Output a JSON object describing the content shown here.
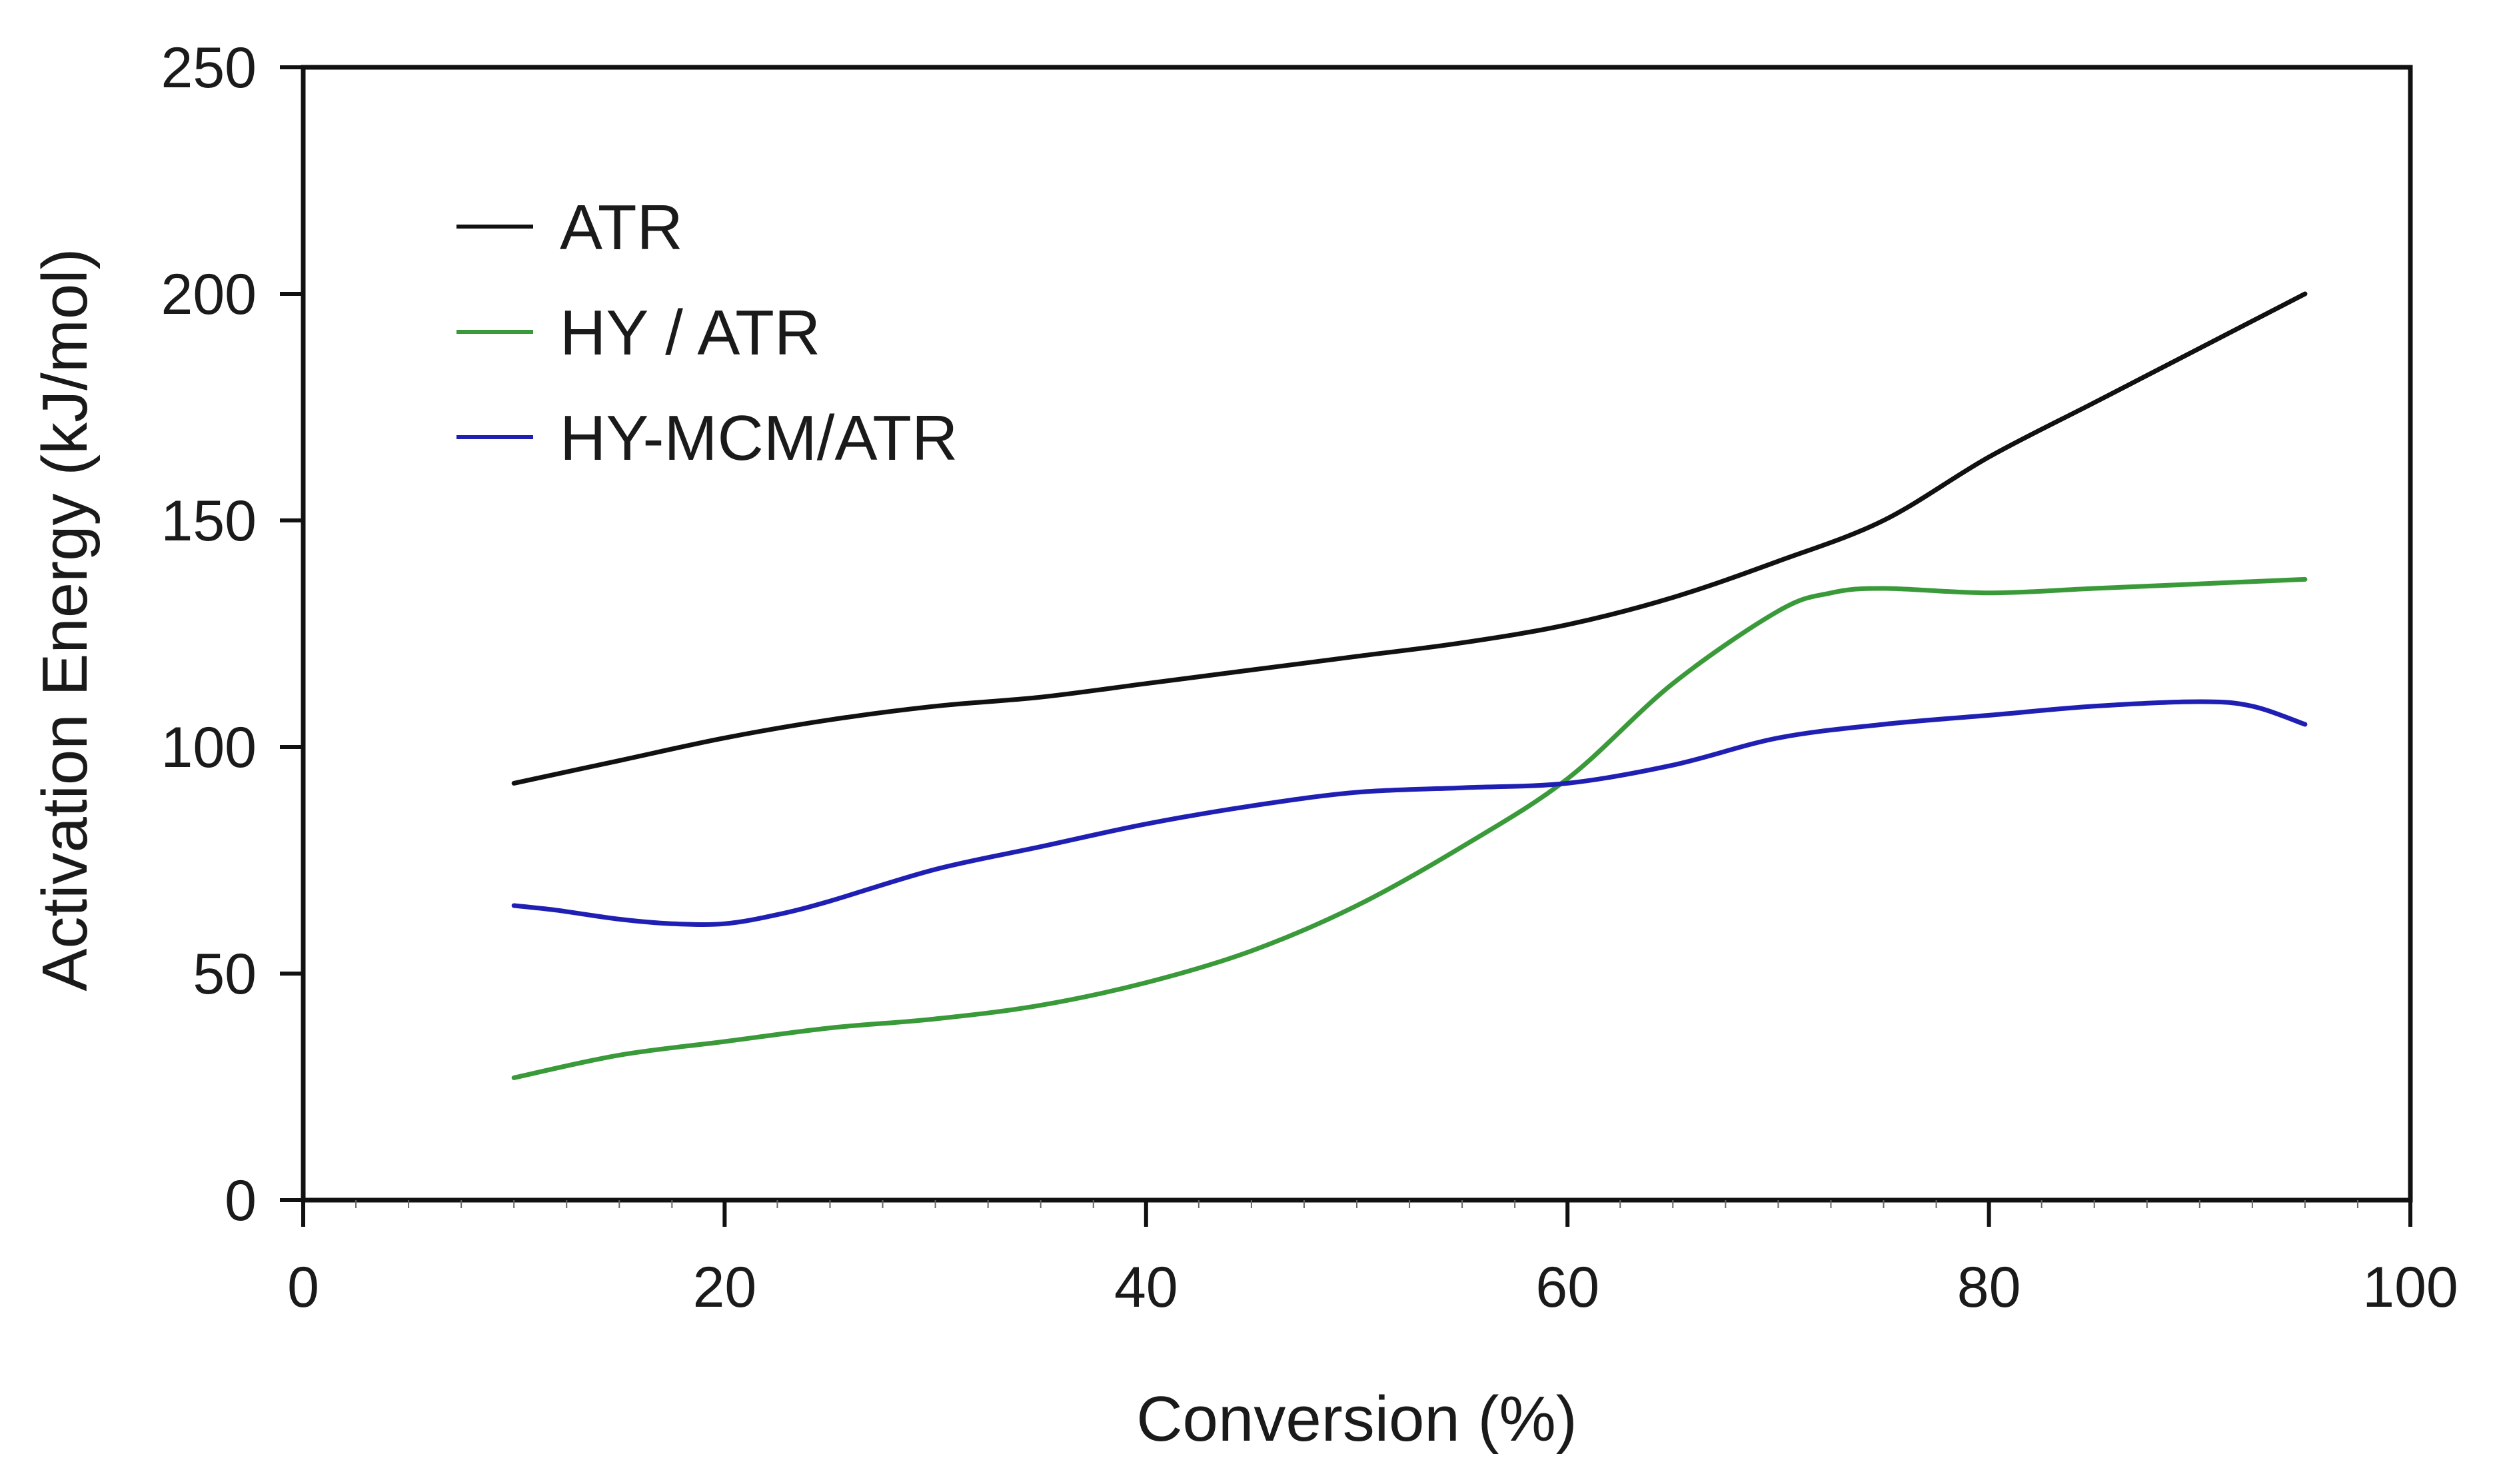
{
  "chart_data": {
    "type": "line",
    "title": "",
    "xlabel": "Conversion (%)",
    "ylabel": "Activation Energy (kJ/mol)",
    "xlim": [
      0,
      100
    ],
    "ylim": [
      0,
      250
    ],
    "xticks": [
      0,
      20,
      40,
      60,
      80,
      100
    ],
    "yticks": [
      0,
      50,
      100,
      150,
      200,
      250
    ],
    "xtick_labels": [
      "0",
      "20",
      "40",
      "60",
      "80",
      "100"
    ],
    "ytick_labels": [
      "0",
      "50",
      "100",
      "150",
      "200",
      "250"
    ],
    "grid": false,
    "legend_position": "top-left",
    "series": [
      {
        "name": "ATR",
        "color": "#111111",
        "x": [
          10,
          15,
          20,
          25,
          30,
          35,
          40,
          45,
          50,
          55,
          60,
          65,
          70,
          75,
          80,
          85,
          90,
          95
        ],
        "y": [
          92,
          97,
          102,
          106,
          109,
          111,
          114,
          117,
          120,
          123,
          127,
          133,
          141,
          150,
          164,
          176,
          188,
          200
        ]
      },
      {
        "name": "HY / ATR",
        "color": "#3a9a3a",
        "x": [
          10,
          15,
          20,
          25,
          30,
          35,
          40,
          45,
          50,
          55,
          60,
          65,
          70,
          72.5,
          75,
          80,
          85,
          90,
          95
        ],
        "y": [
          27,
          32,
          35,
          38,
          40,
          43,
          48,
          55,
          65,
          78,
          93,
          114,
          130,
          134,
          135,
          134,
          135,
          136,
          137
        ]
      },
      {
        "name": "HY-MCM/ATR",
        "color": "#1f1fb4",
        "x": [
          10,
          12,
          15,
          17.5,
          20,
          22.5,
          25,
          30,
          35,
          40,
          45,
          50,
          55,
          60,
          65,
          70,
          75,
          80,
          85,
          90,
          92.5,
          95
        ],
        "y": [
          65,
          64,
          62,
          61,
          61,
          63,
          66,
          73,
          78,
          83,
          87,
          90,
          91,
          92,
          96,
          102,
          105,
          107,
          109,
          110,
          109,
          105
        ]
      }
    ]
  }
}
